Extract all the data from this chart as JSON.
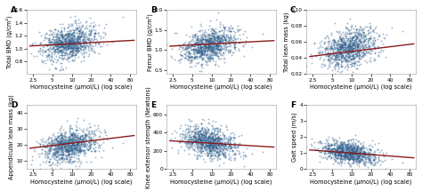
{
  "panels": [
    {
      "label": "A",
      "ylabel": "Total BMD (g/cm²)",
      "ylim": [
        0.6,
        1.6
      ],
      "yticks": [
        0.8,
        1.0,
        1.2,
        1.4,
        1.6
      ],
      "scatter_mean": 1.08,
      "scatter_std": 0.13,
      "trend_y0": 1.04,
      "trend_y1": 1.13,
      "trend_direction": 1,
      "trend_slope": 0.03
    },
    {
      "label": "B",
      "ylabel": "Femur BMD (g/cm²)",
      "ylim": [
        0.4,
        2.0
      ],
      "yticks": [
        0.5,
        1.0,
        1.5,
        2.0
      ],
      "scatter_mean": 1.12,
      "scatter_std": 0.2,
      "trend_y0": 1.1,
      "trend_y1": 1.24,
      "trend_direction": 1,
      "trend_slope": 0.05
    },
    {
      "label": "C",
      "ylabel": "Total lean mass (kg)",
      "ylim": [
        0.02,
        0.1
      ],
      "yticks": [
        0.02,
        0.04,
        0.06,
        0.08,
        0.1
      ],
      "scatter_mean": 0.053,
      "scatter_std": 0.011,
      "trend_y0": 0.042,
      "trend_y1": 0.058,
      "trend_direction": 1,
      "trend_slope": 0.006
    },
    {
      "label": "D",
      "ylabel": "Appendicular lean mass (kg)",
      "ylim": [
        5,
        45
      ],
      "yticks": [
        10,
        20,
        30,
        40
      ],
      "scatter_mean": 20,
      "scatter_std": 5,
      "trend_y0": 18,
      "trend_y1": 26,
      "trend_direction": 1,
      "trend_slope": 3.0
    },
    {
      "label": "E",
      "ylabel": "Knee extensor strength (Newtons)",
      "ylim": [
        0,
        700
      ],
      "yticks": [
        0,
        200,
        400,
        600
      ],
      "scatter_mean": 300,
      "scatter_std": 80,
      "trend_y0": 310,
      "trend_y1": 240,
      "trend_direction": -1,
      "trend_slope": -25.0
    },
    {
      "label": "F",
      "ylabel": "Gait speed (m/s)",
      "ylim": [
        0,
        4
      ],
      "yticks": [
        0,
        1,
        2,
        3,
        4
      ],
      "scatter_mean": 1.05,
      "scatter_std": 0.32,
      "trend_y0": 1.2,
      "trend_y1": 0.7,
      "trend_direction": -1,
      "trend_slope": -0.18
    }
  ],
  "xlabel": "Homocysteine (μmol/L) (log scale)",
  "xticks": [
    2.5,
    5,
    10,
    20,
    40,
    80
  ],
  "xlim_log": [
    2.0,
    100
  ],
  "n_points": 1000,
  "dot_color": "#2b5c8a",
  "dot_alpha": 0.45,
  "dot_size": 1.8,
  "line_color": "#8b1a1a",
  "line_width": 1.0,
  "bg_color": "#ffffff",
  "label_fontsize": 4.8,
  "tick_fontsize": 4.2,
  "panel_label_fontsize": 6.5
}
